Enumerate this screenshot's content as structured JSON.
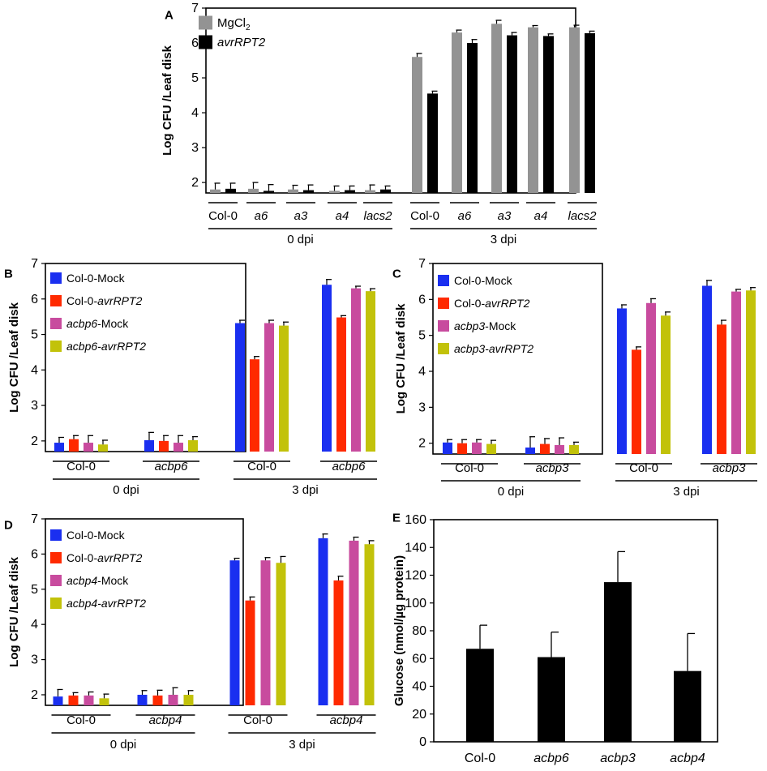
{
  "chart_data": [
    {
      "id": "A",
      "panel_letter": "A",
      "type": "bar",
      "ylabel": "Log CFU /Leaf disk",
      "ylim": [
        1.7,
        7
      ],
      "yticks": [
        2,
        3,
        4,
        5,
        6,
        7
      ],
      "legend": [
        {
          "label": "MgCl",
          "sub": "2",
          "italic": false,
          "color": "#939393"
        },
        {
          "label": "avrRPT2",
          "sub": "",
          "italic": true,
          "color": "#000000"
        }
      ],
      "groups": [
        {
          "label": "0 dpi",
          "categories": [
            {
              "label": "Col-0",
              "italic": false,
              "values": [
                1.8,
                1.82
              ],
              "errors": [
                0.18,
                0.16
              ]
            },
            {
              "label": "a6",
              "italic": true,
              "values": [
                1.82,
                1.76
              ],
              "errors": [
                0.18,
                0.18
              ]
            },
            {
              "label": "a3",
              "italic": true,
              "values": [
                1.8,
                1.78
              ],
              "errors": [
                0.12,
                0.15
              ]
            },
            {
              "label": "a4",
              "italic": true,
              "values": [
                1.76,
                1.78
              ],
              "errors": [
                0.14,
                0.12
              ]
            },
            {
              "label": "lacs2",
              "italic": true,
              "values": [
                1.78,
                1.8
              ],
              "errors": [
                0.15,
                0.1
              ]
            }
          ]
        },
        {
          "label": "3 dpi",
          "categories": [
            {
              "label": "Col-0",
              "italic": false,
              "values": [
                5.6,
                4.55
              ],
              "errors": [
                0.1,
                0.07
              ]
            },
            {
              "label": "a6",
              "italic": true,
              "values": [
                6.3,
                6.0
              ],
              "errors": [
                0.07,
                0.1
              ]
            },
            {
              "label": "a3",
              "italic": true,
              "values": [
                6.55,
                6.22
              ],
              "errors": [
                0.1,
                0.08
              ]
            },
            {
              "label": "a4",
              "italic": true,
              "values": [
                6.45,
                6.2
              ],
              "errors": [
                0.05,
                0.06
              ]
            },
            {
              "label": "lacs2",
              "italic": true,
              "values": [
                6.45,
                6.28
              ],
              "errors": [
                0.06,
                0.06
              ]
            }
          ]
        }
      ]
    },
    {
      "id": "B",
      "panel_letter": "B",
      "type": "bar",
      "ylabel": "Log CFU /Leaf disk",
      "ylim": [
        1.7,
        7
      ],
      "yticks": [
        2,
        3,
        4,
        5,
        6,
        7
      ],
      "legend": [
        {
          "prefix": "Col-0-",
          "label": "Mock",
          "prefix_italic": false,
          "italic": false,
          "color": "#1a2ff0"
        },
        {
          "prefix": "Col-0-",
          "label": "avrRPT2",
          "prefix_italic": false,
          "italic": true,
          "color": "#ff2a00"
        },
        {
          "prefix": "acbp6",
          "label": "-Mock",
          "prefix_italic": true,
          "italic": false,
          "color": "#c84b9e"
        },
        {
          "prefix": "acbp6",
          "label": "-avrRPT2",
          "prefix_italic": true,
          "italic": true,
          "color": "#c2c20a"
        }
      ],
      "groups": [
        {
          "label": "0 dpi",
          "categories": [
            {
              "label": "Col-0",
              "italic": false,
              "values": [
                1.95,
                2.05,
                1.95,
                1.9
              ],
              "errors": [
                0.15,
                0.1,
                0.2,
                0.12
              ]
            },
            {
              "label": "acbp6",
              "italic": true,
              "values": [
                2.02,
                2.0,
                1.95,
                2.02
              ],
              "errors": [
                0.22,
                0.15,
                0.2,
                0.1
              ]
            }
          ]
        },
        {
          "label": "3 dpi",
          "categories": [
            {
              "label": "Col-0",
              "italic": false,
              "values": [
                5.32,
                4.3,
                5.32,
                5.25
              ],
              "errors": [
                0.08,
                0.08,
                0.08,
                0.1
              ]
            },
            {
              "label": "acbp6",
              "italic": true,
              "values": [
                6.4,
                5.48,
                6.3,
                6.22
              ],
              "errors": [
                0.15,
                0.05,
                0.06,
                0.07
              ]
            }
          ]
        }
      ]
    },
    {
      "id": "C",
      "panel_letter": "C",
      "type": "bar",
      "ylabel": "Log CFU /Leaf disk",
      "ylim": [
        1.7,
        7
      ],
      "yticks": [
        2,
        3,
        4,
        5,
        6,
        7
      ],
      "legend": [
        {
          "prefix": "Col-0-",
          "label": "Mock",
          "prefix_italic": false,
          "italic": false,
          "color": "#1a2ff0"
        },
        {
          "prefix": "Col-0-",
          "label": "avrRPT2",
          "prefix_italic": false,
          "italic": true,
          "color": "#ff2a00"
        },
        {
          "prefix": "acbp3",
          "label": "-Mock",
          "prefix_italic": true,
          "italic": false,
          "color": "#c84b9e"
        },
        {
          "prefix": "acbp3",
          "label": "-avrRPT2",
          "prefix_italic": true,
          "italic": true,
          "color": "#c2c20a"
        }
      ],
      "groups": [
        {
          "label": "0 dpi",
          "categories": [
            {
              "label": "Col-0",
              "italic": false,
              "values": [
                2.02,
                2.0,
                2.02,
                1.98
              ],
              "errors": [
                0.08,
                0.1,
                0.08,
                0.1
              ]
            },
            {
              "label": "acbp3",
              "italic": true,
              "values": [
                1.88,
                1.98,
                1.95,
                1.95
              ],
              "errors": [
                0.3,
                0.15,
                0.2,
                0.08
              ]
            }
          ]
        },
        {
          "label": "3 dpi",
          "categories": [
            {
              "label": "Col-0",
              "italic": false,
              "values": [
                5.75,
                4.6,
                5.9,
                5.55
              ],
              "errors": [
                0.1,
                0.08,
                0.12,
                0.1
              ]
            },
            {
              "label": "acbp3",
              "italic": true,
              "values": [
                6.38,
                5.3,
                6.22,
                6.25
              ],
              "errors": [
                0.15,
                0.12,
                0.06,
                0.08
              ]
            }
          ]
        }
      ]
    },
    {
      "id": "D",
      "panel_letter": "D",
      "type": "bar",
      "ylabel": "Log CFU /Leaf disk",
      "ylim": [
        1.7,
        7
      ],
      "yticks": [
        2,
        3,
        4,
        5,
        6,
        7
      ],
      "legend": [
        {
          "prefix": "Col-0-",
          "label": "Mock",
          "prefix_italic": false,
          "italic": false,
          "color": "#1a2ff0"
        },
        {
          "prefix": "Col-0-",
          "label": "avrRPT2",
          "prefix_italic": false,
          "italic": true,
          "color": "#ff2a00"
        },
        {
          "prefix": "acbp4",
          "label": "-Mock",
          "prefix_italic": true,
          "italic": false,
          "color": "#c84b9e"
        },
        {
          "prefix": "acbp4",
          "label": "-avrRPT2",
          "prefix_italic": true,
          "italic": true,
          "color": "#c2c20a"
        }
      ],
      "groups": [
        {
          "label": "0 dpi",
          "categories": [
            {
              "label": "Col-0",
              "italic": false,
              "values": [
                1.95,
                1.98,
                1.98,
                1.9
              ],
              "errors": [
                0.2,
                0.08,
                0.1,
                0.12
              ]
            },
            {
              "label": "acbp4",
              "italic": true,
              "values": [
                2.0,
                1.98,
                2.0,
                2.0
              ],
              "errors": [
                0.12,
                0.15,
                0.2,
                0.12
              ]
            }
          ]
        },
        {
          "label": "3 dpi",
          "categories": [
            {
              "label": "Col-0",
              "italic": false,
              "values": [
                5.82,
                4.68,
                5.82,
                5.75
              ],
              "errors": [
                0.06,
                0.1,
                0.08,
                0.18
              ]
            },
            {
              "label": "acbp4",
              "italic": true,
              "values": [
                6.45,
                5.25,
                6.38,
                6.28
              ],
              "errors": [
                0.12,
                0.12,
                0.1,
                0.1
              ]
            }
          ]
        }
      ]
    },
    {
      "id": "E",
      "panel_letter": "E",
      "type": "bar",
      "ylabel": "Glucose (nmol/µg protein)",
      "ylim": [
        0,
        160
      ],
      "yticks": [
        0,
        20,
        40,
        60,
        80,
        100,
        120,
        140,
        160
      ],
      "color": "#000000",
      "categories": [
        {
          "label": "Col-0",
          "italic": false,
          "value": 67,
          "error": 17
        },
        {
          "label": "acbp6",
          "italic": true,
          "value": 61,
          "error": 18
        },
        {
          "label": "acbp3",
          "italic": true,
          "value": 115,
          "error": 22
        },
        {
          "label": "acbp4",
          "italic": true,
          "value": 51,
          "error": 27
        }
      ]
    }
  ]
}
